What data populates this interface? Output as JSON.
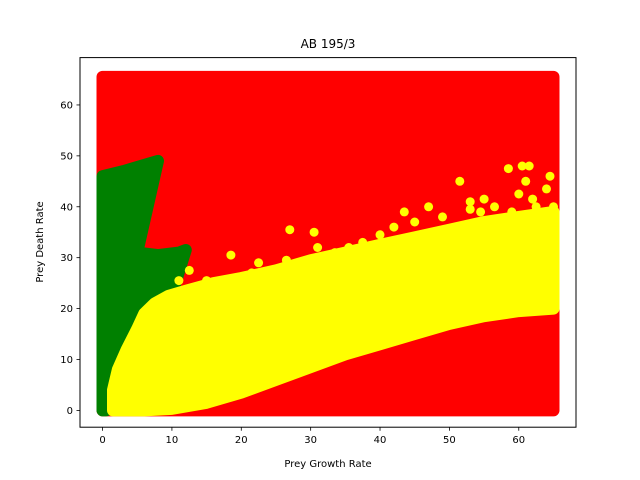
{
  "chart_data": {
    "type": "scatter",
    "title": "AB 195/3",
    "xlabel": "Prey Growth Rate",
    "ylabel": "Prey Death Rate",
    "xlim": [
      -3.25,
      68.25
    ],
    "ylim": [
      -3.3,
      69.3
    ],
    "xticks": [
      0,
      10,
      20,
      30,
      40,
      50,
      60
    ],
    "yticks": [
      0,
      10,
      20,
      30,
      40,
      50,
      60
    ],
    "grid": false,
    "regions": [
      {
        "color": "#ff0000",
        "polygon": [
          [
            0,
            0
          ],
          [
            65,
            0
          ],
          [
            65,
            65.5
          ],
          [
            0,
            65.5
          ]
        ]
      },
      {
        "color": "#008000",
        "polygon": [
          [
            0,
            0
          ],
          [
            0,
            46
          ],
          [
            3,
            47
          ],
          [
            8,
            49
          ],
          [
            5,
            31
          ],
          [
            8,
            30.5
          ],
          [
            11,
            31
          ],
          [
            12,
            31.5
          ],
          [
            10.5,
            25
          ],
          [
            8.5,
            21
          ],
          [
            7,
            20
          ],
          [
            5,
            17
          ],
          [
            3.5,
            12.5
          ],
          [
            2,
            6.5
          ],
          [
            1,
            1.5
          ],
          [
            0.5,
            0
          ]
        ]
      },
      {
        "color": "#ffff00",
        "polygon": [
          [
            1.5,
            0
          ],
          [
            1.5,
            4
          ],
          [
            2.2,
            8
          ],
          [
            3.5,
            12
          ],
          [
            5,
            16
          ],
          [
            6,
            19
          ],
          [
            7.5,
            21
          ],
          [
            9.5,
            22.5
          ],
          [
            12,
            23.5
          ],
          [
            16,
            25
          ],
          [
            20,
            26
          ],
          [
            25,
            27.5
          ],
          [
            30,
            29.5
          ],
          [
            35,
            31
          ],
          [
            40,
            32.5
          ],
          [
            45,
            34
          ],
          [
            50,
            35.5
          ],
          [
            55,
            37
          ],
          [
            60,
            38
          ],
          [
            65,
            39
          ],
          [
            65,
            20
          ],
          [
            60,
            19.5
          ],
          [
            55,
            18.5
          ],
          [
            50,
            17
          ],
          [
            45,
            15
          ],
          [
            40,
            13
          ],
          [
            35,
            11
          ],
          [
            30,
            8.5
          ],
          [
            25,
            6
          ],
          [
            20,
            3.5
          ],
          [
            15,
            1.5
          ],
          [
            10,
            0.3
          ],
          [
            6,
            0
          ]
        ]
      }
    ],
    "series": [
      {
        "color": "#ffff00",
        "points": [
          [
            11,
            25.5
          ],
          [
            12.5,
            27.5
          ],
          [
            15,
            25.5
          ],
          [
            18.5,
            30.5
          ],
          [
            21.5,
            27
          ],
          [
            22.5,
            29
          ],
          [
            26.5,
            29.5
          ],
          [
            27,
            35.5
          ],
          [
            30.5,
            35
          ],
          [
            31,
            32
          ],
          [
            33.5,
            31
          ],
          [
            35.5,
            32
          ],
          [
            37.5,
            33
          ],
          [
            40,
            34.5
          ],
          [
            42,
            36
          ],
          [
            43.5,
            39
          ],
          [
            45,
            37
          ],
          [
            47,
            40
          ],
          [
            49,
            38
          ],
          [
            51.5,
            45
          ],
          [
            53,
            41
          ],
          [
            53,
            39.5
          ],
          [
            54.5,
            39
          ],
          [
            55,
            41.5
          ],
          [
            55.5,
            37
          ],
          [
            56.5,
            40
          ],
          [
            56.5,
            22
          ],
          [
            58.5,
            47.5
          ],
          [
            59,
            39
          ],
          [
            59.5,
            30.5
          ],
          [
            60,
            42.5
          ],
          [
            60.5,
            48
          ],
          [
            61,
            45
          ],
          [
            61.5,
            48
          ],
          [
            62,
            35
          ],
          [
            62.5,
            40
          ],
          [
            62,
            41.5
          ],
          [
            63,
            37
          ],
          [
            63.5,
            30
          ],
          [
            64,
            43.5
          ],
          [
            64,
            25
          ],
          [
            64.5,
            33
          ],
          [
            64.5,
            46
          ],
          [
            64.5,
            24
          ],
          [
            65,
            28
          ],
          [
            65,
            40
          ],
          [
            65,
            36.5
          ],
          [
            64.5,
            31
          ],
          [
            55,
            19
          ],
          [
            52,
            21
          ],
          [
            48,
            20.5
          ],
          [
            44,
            17
          ],
          [
            40,
            14.5
          ],
          [
            36,
            12.5
          ],
          [
            32,
            9.5
          ],
          [
            28,
            8
          ],
          [
            25,
            6.5
          ],
          [
            20,
            4
          ],
          [
            15,
            2
          ],
          [
            10,
            0.5
          ],
          [
            5,
            0.5
          ],
          [
            2,
            1.5
          ],
          [
            1.5,
            2.5
          ],
          [
            2,
            5
          ]
        ]
      }
    ]
  }
}
